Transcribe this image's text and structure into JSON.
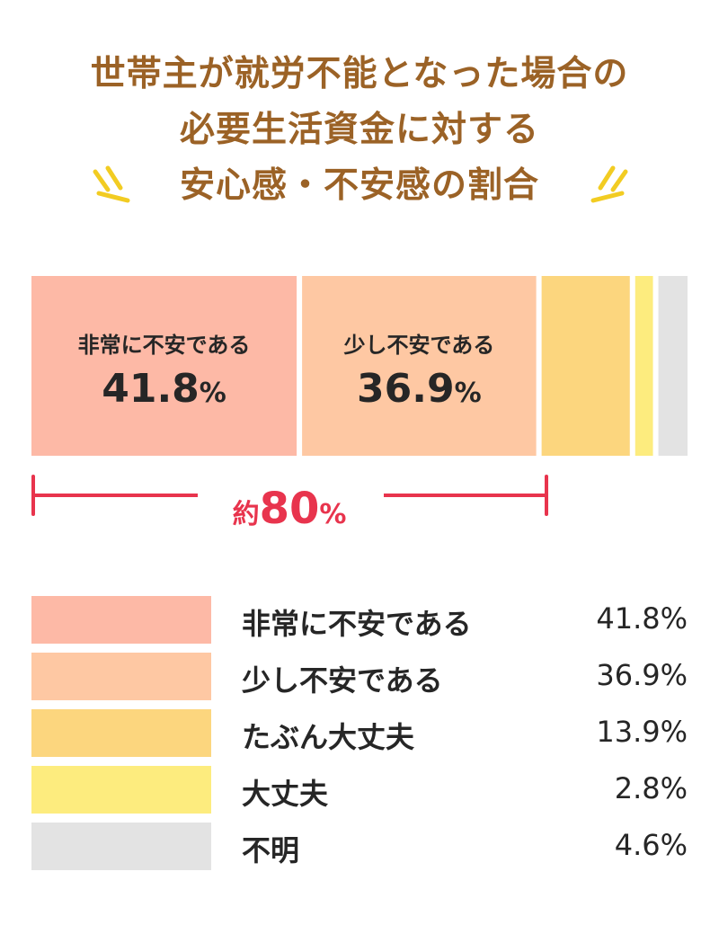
{
  "title": {
    "line1": "世帯主が就労不能となった場合の",
    "line2": "必要生活資金に対する",
    "line3": "安心感・不安感の割合"
  },
  "colors": {
    "title": "#9b6226",
    "accent": "#e8344d",
    "spark": "#f2cc22",
    "text": "#262626"
  },
  "chart_data": {
    "type": "bar",
    "orientation": "horizontal-stacked",
    "title": "世帯主が就労不能となった場合の必要生活資金に対する安心感・不安感の割合",
    "unit": "%",
    "categories": [
      "非常に不安である",
      "少し不安である",
      "たぶん大丈夫",
      "大丈夫",
      "不明"
    ],
    "values": [
      41.8,
      36.9,
      13.9,
      2.8,
      4.6
    ],
    "value_labels": [
      "41.8%",
      "36.9%",
      "13.9%",
      "2.8%",
      "4.6%"
    ],
    "colors": [
      "#fdb9a6",
      "#fec8a3",
      "#fcd67e",
      "#fdec7e",
      "#e3e3e3"
    ],
    "annotation": {
      "prefix": "約",
      "number": "80",
      "suffix": "%",
      "spans_categories": [
        "非常に不安である",
        "少し不安である"
      ]
    }
  },
  "segments": [
    {
      "name": "非常に不安である",
      "value": "41.8",
      "pct": "%"
    },
    {
      "name": "少し不安である",
      "value": "36.9",
      "pct": "%"
    }
  ],
  "legend": [
    {
      "label": "非常に不安である",
      "value": "41.8%"
    },
    {
      "label": "少し不安である",
      "value": "36.9%"
    },
    {
      "label": "たぶん大丈夫",
      "value": "13.9%"
    },
    {
      "label": "大丈夫",
      "value": "2.8%"
    },
    {
      "label": "不明",
      "value": "4.6%"
    }
  ]
}
